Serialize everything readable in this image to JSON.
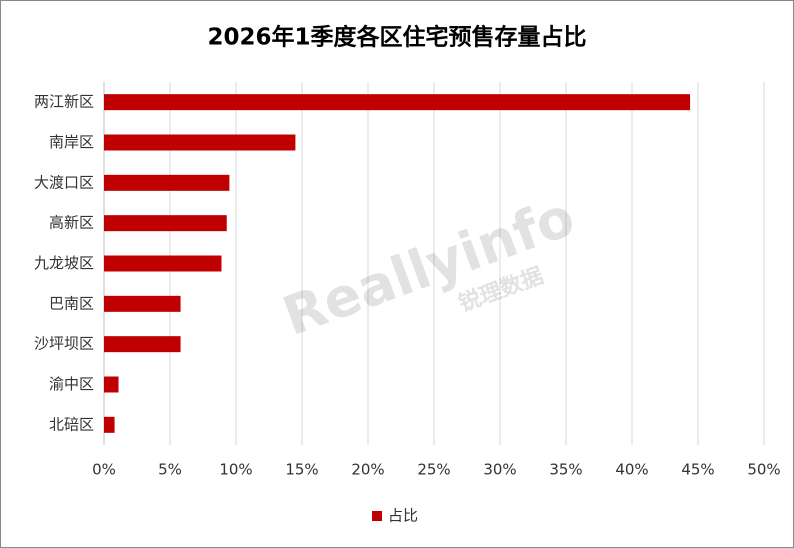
{
  "chart_data": {
    "type": "hbar",
    "title": "2026年1季度各区住宅预售存量占比",
    "categories": [
      "两江新区",
      "南岸区",
      "大渡口区",
      "高新区",
      "九龙坡区",
      "巴南区",
      "沙坪坝区",
      "渝中区",
      "北碚区"
    ],
    "series": [
      {
        "name": "占比",
        "color": "#c00000",
        "values": [
          44.4,
          14.5,
          9.5,
          9.3,
          8.9,
          5.8,
          5.8,
          1.1,
          0.8
        ]
      }
    ],
    "xlim": [
      0,
      50
    ],
    "xticks": [
      {
        "value": 0,
        "label": "0%"
      },
      {
        "value": 5,
        "label": "5%"
      },
      {
        "value": 10,
        "label": "10%"
      },
      {
        "value": 15,
        "label": "15%"
      },
      {
        "value": 20,
        "label": "20%"
      },
      {
        "value": 25,
        "label": "25%"
      },
      {
        "value": 30,
        "label": "30%"
      },
      {
        "value": 35,
        "label": "35%"
      },
      {
        "value": 40,
        "label": "40%"
      },
      {
        "value": 45,
        "label": "45%"
      },
      {
        "value": 50,
        "label": "50%"
      }
    ],
    "grid": true,
    "legend": "bottom",
    "watermark": [
      "Reallyinfo",
      "锐理数据"
    ]
  }
}
